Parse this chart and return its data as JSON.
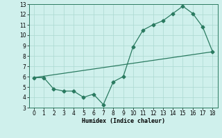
{
  "xlabel": "Humidex (Indice chaleur)",
  "line1_x": [
    0,
    1,
    2,
    3,
    4,
    5,
    6,
    7,
    8,
    9,
    10,
    11,
    12,
    13,
    14,
    15,
    16,
    17,
    18
  ],
  "line1_y": [
    5.9,
    5.9,
    4.8,
    4.6,
    4.6,
    4.0,
    4.3,
    3.3,
    5.5,
    6.0,
    8.9,
    10.5,
    11.0,
    11.4,
    12.1,
    12.8,
    12.1,
    10.8,
    8.4
  ],
  "line2_x": [
    0,
    18
  ],
  "line2_y": [
    5.9,
    8.4
  ],
  "line_color": "#2a7a60",
  "bg_color": "#cff0ec",
  "grid_color": "#aad8d0",
  "xlim": [
    -0.5,
    18.5
  ],
  "ylim": [
    3,
    13
  ],
  "yticks": [
    3,
    4,
    5,
    6,
    7,
    8,
    9,
    10,
    11,
    12,
    13
  ],
  "xticks": [
    0,
    1,
    2,
    3,
    4,
    5,
    6,
    7,
    8,
    9,
    10,
    11,
    12,
    13,
    14,
    15,
    16,
    17,
    18
  ]
}
